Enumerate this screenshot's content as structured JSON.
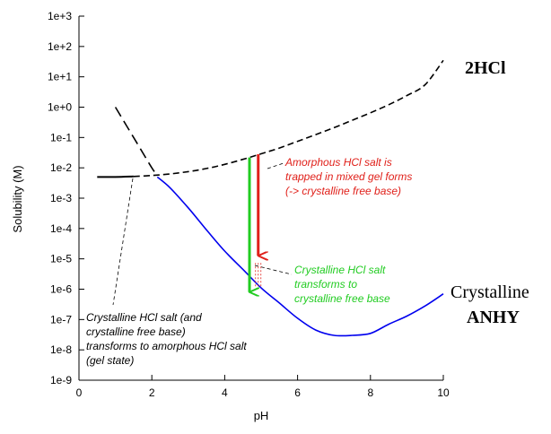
{
  "chart_data": {
    "type": "line",
    "xlabel": "pH",
    "ylabel": "Solubility (M)",
    "xlim": [
      0,
      10
    ],
    "ylim_log10": [
      -9,
      3
    ],
    "y_scale": "log",
    "grid": false,
    "x_ticks": [
      "0",
      "2",
      "4",
      "6",
      "8",
      "10"
    ],
    "y_ticks": [
      "1e-9",
      "1e-8",
      "1e-7",
      "1e-6",
      "1e-5",
      "1e-4",
      "1e-3",
      "1e-2",
      "1e-1",
      "1e+0",
      "1e+1",
      "1e+2",
      "1e+3"
    ],
    "series": [
      {
        "name": "2HCl",
        "style": "dashed",
        "color": "#000000",
        "x": [
          1.0,
          1.5,
          2.0,
          2.1
        ],
        "y": [
          1.0,
          0.1,
          0.01,
          0.007
        ]
      },
      {
        "name": "2HCl",
        "style": "solid-then-dashed",
        "color": "#000000",
        "x": [
          0.5,
          1.0,
          1.5,
          2.0,
          2.5,
          3.0,
          3.5,
          4.0,
          4.5,
          5.0,
          5.5,
          6.0,
          6.5,
          7.0,
          7.5,
          8.0,
          8.5,
          9.0,
          9.5,
          10.0
        ],
        "y": [
          0.005,
          0.005,
          0.0052,
          0.0056,
          0.0063,
          0.0075,
          0.0095,
          0.013,
          0.019,
          0.029,
          0.045,
          0.075,
          0.125,
          0.21,
          0.37,
          0.65,
          1.2,
          2.4,
          5.5,
          35
        ]
      },
      {
        "name": "Crystalline ANHY",
        "style": "solid",
        "color": "#0000ee",
        "x": [
          2.15,
          2.5,
          3.0,
          3.5,
          4.0,
          4.5,
          5.0,
          5.5,
          6.0,
          6.5,
          7.0,
          7.5,
          8.0,
          8.5,
          9.0,
          9.5,
          10.0
        ],
        "y": [
          0.005,
          0.0022,
          0.00048,
          9e-05,
          1.8e-05,
          4.5e-06,
          1.1e-06,
          3.5e-07,
          1.1e-07,
          4.5e-08,
          3e-08,
          3e-08,
          3.5e-08,
          7e-08,
          1.3e-07,
          2.8e-07,
          7e-07
        ]
      }
    ],
    "arrows": [
      {
        "color": "#22cc22",
        "x": 4.68,
        "y_from": 0.022,
        "y_to": 7e-07
      },
      {
        "color": "#e0201a",
        "x": 4.92,
        "y_from": 0.028,
        "y_to": 1.1e-05
      }
    ],
    "series_labels": {
      "hcl": "2HCl",
      "anhy_line1": "Crystalline",
      "anhy_line2": "ANHY"
    },
    "annotations": {
      "red_1": "Amorphous HCl salt is",
      "red_2": "trapped in mixed gel forms",
      "red_3": "(-> crystalline free base)",
      "green_1": "Crystalline HCl salt",
      "green_2": "transforms to",
      "green_3": "crystalline free base",
      "black_1": "Crystalline HCl salt (and",
      "black_2": "crystalline free base)",
      "black_3": "transforms to amorphous HCl salt",
      "black_4": "(gel state)"
    },
    "colors": {
      "red": "#e0201a",
      "green": "#22cc22",
      "blue": "#0000ee",
      "black": "#000000"
    }
  }
}
